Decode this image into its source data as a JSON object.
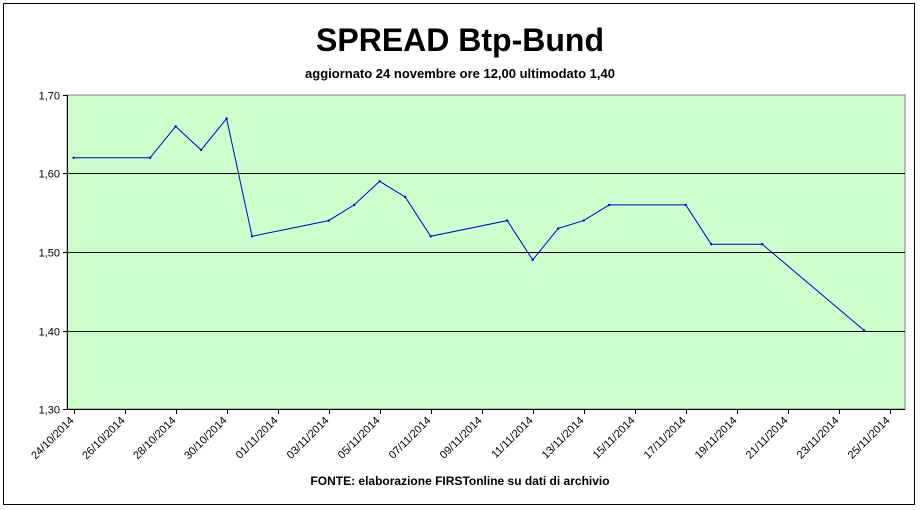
{
  "chart_data": {
    "type": "line",
    "title": "SPREAD Btp-Bund",
    "subtitle": "aggiornato 24 novembre ore 12,00  ultimodato  1,40",
    "source_note": "FONTE: elaborazione FIRSTonline su dati di archivio",
    "ylim": [
      1.3,
      1.7
    ],
    "y_ticks": [
      {
        "v": 1.3,
        "label": "1,30"
      },
      {
        "v": 1.4,
        "label": "1,40"
      },
      {
        "v": 1.5,
        "label": "1,50"
      },
      {
        "v": 1.6,
        "label": "1,60"
      },
      {
        "v": 1.7,
        "label": "1,70"
      }
    ],
    "x_ticks": [
      "24/10/2014",
      "26/10/2014",
      "28/10/2014",
      "30/10/2014",
      "01/11/2014",
      "03/11/2014",
      "05/11/2014",
      "07/11/2014",
      "09/11/2014",
      "11/11/2014",
      "13/11/2014",
      "15/11/2014",
      "17/11/2014",
      "19/11/2014",
      "21/11/2014",
      "23/11/2014",
      "25/11/2014"
    ],
    "grid": "horizontal",
    "colors": {
      "plot_background": "#ccffcc",
      "line": "#0000cc"
    },
    "series": [
      {
        "points": [
          {
            "x": "24/10/2014",
            "y": 1.62
          },
          {
            "x": "27/10/2014",
            "y": 1.62
          },
          {
            "x": "28/10/2014",
            "y": 1.66
          },
          {
            "x": "29/10/2014",
            "y": 1.63
          },
          {
            "x": "30/10/2014",
            "y": 1.67
          },
          {
            "x": "31/10/2014",
            "y": 1.52
          },
          {
            "x": "03/11/2014",
            "y": 1.54
          },
          {
            "x": "04/11/2014",
            "y": 1.56
          },
          {
            "x": "05/11/2014",
            "y": 1.59
          },
          {
            "x": "06/11/2014",
            "y": 1.57
          },
          {
            "x": "07/11/2014",
            "y": 1.52
          },
          {
            "x": "10/11/2014",
            "y": 1.54
          },
          {
            "x": "11/11/2014",
            "y": 1.49
          },
          {
            "x": "12/11/2014",
            "y": 1.53
          },
          {
            "x": "13/11/2014",
            "y": 1.54
          },
          {
            "x": "14/11/2014",
            "y": 1.56
          },
          {
            "x": "17/11/2014",
            "y": 1.56
          },
          {
            "x": "18/11/2014",
            "y": 1.51
          },
          {
            "x": "20/11/2014",
            "y": 1.51
          },
          {
            "x": "24/11/2014",
            "y": 1.4
          }
        ]
      }
    ]
  }
}
